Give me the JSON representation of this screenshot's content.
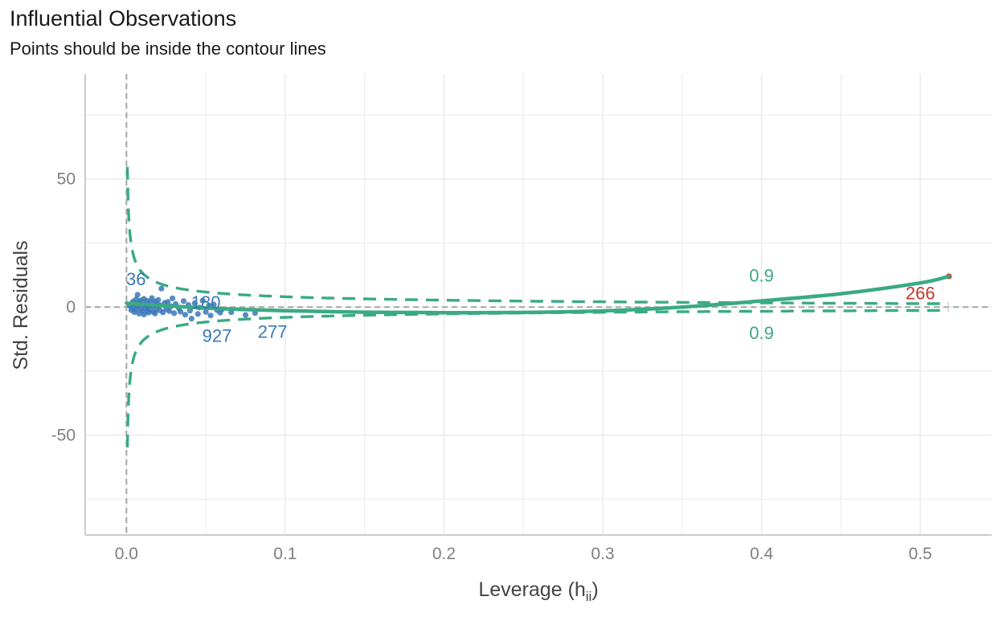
{
  "chart_data": {
    "type": "scatter",
    "title": "Influential Observations",
    "subtitle": "Points should be inside the contour lines",
    "xlabel": "Leverage (h",
    "xlabel_sub": "ii",
    "xlabel_close": ")",
    "ylabel": "Std. Residuals",
    "xlim": [
      -0.026,
      0.545
    ],
    "ylim": [
      -89,
      91
    ],
    "x_ticks": [
      0.0,
      0.1,
      0.2,
      0.3,
      0.4,
      0.5
    ],
    "x_tick_labels": [
      "0.0",
      "0.1",
      "0.2",
      "0.3",
      "0.4",
      "0.5"
    ],
    "y_ticks": [
      -50,
      0,
      50
    ],
    "y_tick_labels": [
      "-50",
      "0",
      "50"
    ],
    "grid": true,
    "colors": {
      "points": "#3a78b8",
      "outlier": "#c0392b",
      "contour": "#3aaa82",
      "fit": "#3aaa82",
      "reference": "#a6a6a6",
      "grid": "#ebebeb",
      "axis": "#cccccc"
    },
    "points": [
      {
        "x": 0.002,
        "y": 0.5
      },
      {
        "x": 0.003,
        "y": -1.2
      },
      {
        "x": 0.004,
        "y": 2.1
      },
      {
        "x": 0.004,
        "y": -0.4
      },
      {
        "x": 0.005,
        "y": 1.3
      },
      {
        "x": 0.005,
        "y": -2.0
      },
      {
        "x": 0.006,
        "y": 3.0
      },
      {
        "x": 0.006,
        "y": -1.1
      },
      {
        "x": 0.007,
        "y": 0.2
      },
      {
        "x": 0.007,
        "y": 4.8
      },
      {
        "x": 0.008,
        "y": -2.6
      },
      {
        "x": 0.008,
        "y": 1.8
      },
      {
        "x": 0.009,
        "y": -0.7
      },
      {
        "x": 0.009,
        "y": 2.6
      },
      {
        "x": 0.01,
        "y": -1.7
      },
      {
        "x": 0.01,
        "y": 0.9
      },
      {
        "x": 0.011,
        "y": 3.2
      },
      {
        "x": 0.011,
        "y": -2.9
      },
      {
        "x": 0.012,
        "y": 1.1
      },
      {
        "x": 0.012,
        "y": -0.3
      },
      {
        "x": 0.013,
        "y": 2.4
      },
      {
        "x": 0.013,
        "y": -1.5
      },
      {
        "x": 0.014,
        "y": 0.6
      },
      {
        "x": 0.014,
        "y": -2.2
      },
      {
        "x": 0.015,
        "y": 1.9
      },
      {
        "x": 0.015,
        "y": -0.9
      },
      {
        "x": 0.016,
        "y": 3.5
      },
      {
        "x": 0.017,
        "y": -1.9
      },
      {
        "x": 0.017,
        "y": 0.4
      },
      {
        "x": 0.018,
        "y": 2.2
      },
      {
        "x": 0.018,
        "y": -2.5
      },
      {
        "x": 0.019,
        "y": 1.4
      },
      {
        "x": 0.019,
        "y": -0.6
      },
      {
        "x": 0.02,
        "y": 2.8
      },
      {
        "x": 0.021,
        "y": -1.3
      },
      {
        "x": 0.021,
        "y": 0.7
      },
      {
        "x": 0.022,
        "y": 7.2
      },
      {
        "x": 0.023,
        "y": -2.1
      },
      {
        "x": 0.024,
        "y": 1.6
      },
      {
        "x": 0.025,
        "y": -0.8
      },
      {
        "x": 0.026,
        "y": 2.0
      },
      {
        "x": 0.027,
        "y": -1.6
      },
      {
        "x": 0.028,
        "y": 0.3
      },
      {
        "x": 0.029,
        "y": 3.4
      },
      {
        "x": 0.03,
        "y": -2.4
      },
      {
        "x": 0.031,
        "y": 1.2
      },
      {
        "x": 0.033,
        "y": -0.5
      },
      {
        "x": 0.034,
        "y": -1.8
      },
      {
        "x": 0.036,
        "y": 2.3
      },
      {
        "x": 0.037,
        "y": -3.0
      },
      {
        "x": 0.039,
        "y": 0.8
      },
      {
        "x": 0.04,
        "y": -1.4
      },
      {
        "x": 0.041,
        "y": -4.5
      },
      {
        "x": 0.043,
        "y": 1.5
      },
      {
        "x": 0.045,
        "y": -2.7
      },
      {
        "x": 0.046,
        "y": -0.2
      },
      {
        "x": 0.048,
        "y": 2.5
      },
      {
        "x": 0.05,
        "y": -1.9
      },
      {
        "x": 0.052,
        "y": 0.6
      },
      {
        "x": 0.053,
        "y": -3.3
      },
      {
        "x": 0.055,
        "y": 1.0
      },
      {
        "x": 0.057,
        "y": -1.2
      },
      {
        "x": 0.059,
        "y": -2.2
      },
      {
        "x": 0.06,
        "y": -1.0
      },
      {
        "x": 0.066,
        "y": -2.0
      },
      {
        "x": 0.075,
        "y": -3.1
      },
      {
        "x": 0.081,
        "y": -2.3
      }
    ],
    "outlier_points": [
      {
        "x": 0.518,
        "y": 12.0
      }
    ],
    "contour_levels": [
      {
        "label": "0.9",
        "x": 0.4,
        "y": 12.5
      },
      {
        "label": "0.9",
        "x": 0.4,
        "y": -10.0
      }
    ],
    "point_labels": [
      {
        "text": "36",
        "x": 0.006,
        "y": 11.0,
        "type": "normal"
      },
      {
        "text": "180",
        "x": 0.05,
        "y": 2.0,
        "type": "normal"
      },
      {
        "text": "927",
        "x": 0.057,
        "y": -11.0,
        "type": "normal"
      },
      {
        "text": "277",
        "x": 0.092,
        "y": -9.5,
        "type": "normal"
      },
      {
        "text": "266",
        "x": 0.5,
        "y": 5.6,
        "type": "outlier"
      }
    ],
    "fit_line": [
      {
        "x": 0.0,
        "y": 1.5
      },
      {
        "x": 0.05,
        "y": -0.4
      },
      {
        "x": 0.1,
        "y": -1.4
      },
      {
        "x": 0.15,
        "y": -2.0
      },
      {
        "x": 0.2,
        "y": -2.2
      },
      {
        "x": 0.25,
        "y": -2.1
      },
      {
        "x": 0.3,
        "y": -1.5
      },
      {
        "x": 0.35,
        "y": 0.0
      },
      {
        "x": 0.4,
        "y": 2.4
      },
      {
        "x": 0.45,
        "y": 5.2
      },
      {
        "x": 0.5,
        "y": 9.4
      },
      {
        "x": 0.518,
        "y": 12.0
      }
    ]
  }
}
